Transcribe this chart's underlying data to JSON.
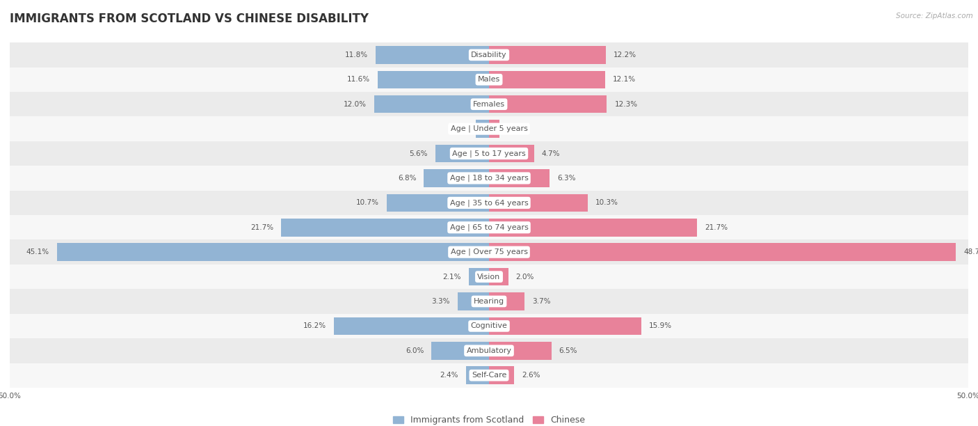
{
  "title": "IMMIGRANTS FROM SCOTLAND VS CHINESE DISABILITY",
  "source": "Source: ZipAtlas.com",
  "categories": [
    "Disability",
    "Males",
    "Females",
    "Age | Under 5 years",
    "Age | 5 to 17 years",
    "Age | 18 to 34 years",
    "Age | 35 to 64 years",
    "Age | 65 to 74 years",
    "Age | Over 75 years",
    "Vision",
    "Hearing",
    "Cognitive",
    "Ambulatory",
    "Self-Care"
  ],
  "scotland_values": [
    11.8,
    11.6,
    12.0,
    1.4,
    5.6,
    6.8,
    10.7,
    21.7,
    45.1,
    2.1,
    3.3,
    16.2,
    6.0,
    2.4
  ],
  "chinese_values": [
    12.2,
    12.1,
    12.3,
    1.1,
    4.7,
    6.3,
    10.3,
    21.7,
    48.7,
    2.0,
    3.7,
    15.9,
    6.5,
    2.6
  ],
  "scotland_color": "#92b4d4",
  "chinese_color": "#e8829a",
  "scotland_label": "Immigrants from Scotland",
  "chinese_label": "Chinese",
  "axis_max": 50.0,
  "background_color": "#ffffff",
  "row_bg_odd": "#ebebeb",
  "row_bg_even": "#f7f7f7",
  "title_fontsize": 12,
  "label_fontsize": 8,
  "value_fontsize": 7.5,
  "legend_fontsize": 9
}
